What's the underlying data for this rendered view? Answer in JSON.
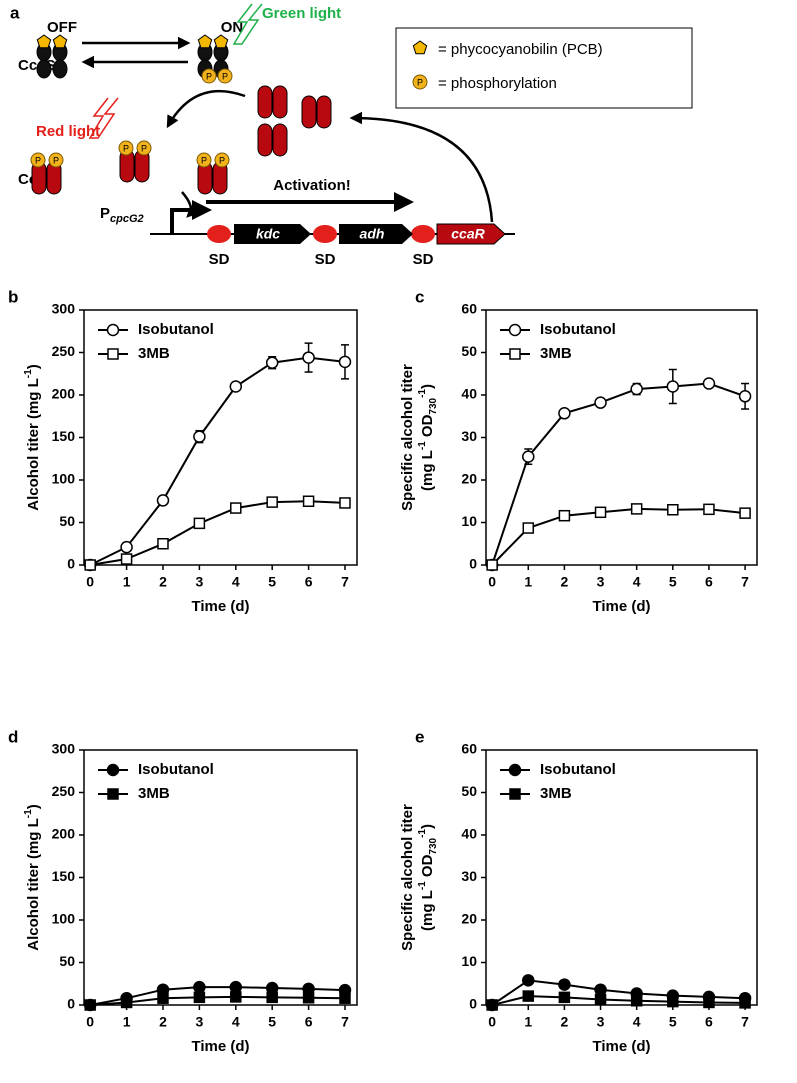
{
  "diagram": {
    "panel": "a",
    "off": "OFF",
    "on": "ON",
    "ccas": "CcaS",
    "green_light": "Green light",
    "red_light": "Red light",
    "ccar": "CcaR",
    "promoter": "P",
    "promoter_sub": "cpcG2",
    "activation": "Activation!",
    "genes": [
      "kdc",
      "adh",
      "ccaR"
    ],
    "sd": [
      "SD",
      "SD",
      "SD"
    ],
    "phospho": "P",
    "legend": [
      "= phycocyanobilin (PCB)",
      "= phosphorylation"
    ]
  },
  "chart_data": [
    {
      "type": "line",
      "label": "b",
      "xlabel": "Time (d)",
      "ylabel": [
        [
          {
            "text": "Alcohol titer (mg L"
          },
          {
            "text": "-1",
            "sup": true
          },
          {
            "text": ")"
          }
        ]
      ],
      "x": [
        0,
        1,
        2,
        3,
        4,
        5,
        6,
        7
      ],
      "xlim": [
        -0.17,
        7.33
      ],
      "xticks": [
        0,
        1,
        2,
        3,
        4,
        5,
        6,
        7
      ],
      "ylim": [
        0,
        300
      ],
      "yticks": [
        0,
        50,
        100,
        150,
        200,
        250,
        300
      ],
      "legend": "upper left",
      "series": [
        {
          "name": "Isobutanol",
          "color": "#000000",
          "marker": "circle",
          "filled": false,
          "values": [
            0,
            21,
            76,
            151,
            210,
            238,
            244,
            239
          ],
          "errors": [
            0,
            2,
            3,
            7,
            2,
            7,
            17,
            20
          ]
        },
        {
          "name": "3MB",
          "color": "#000000",
          "marker": "square",
          "filled": false,
          "values": [
            0,
            7,
            25,
            49,
            67,
            74,
            75,
            73
          ],
          "errors": [
            0,
            1,
            1,
            2,
            2,
            2,
            2,
            2
          ]
        }
      ]
    },
    {
      "type": "line",
      "label": "c",
      "xlabel": "Time (d)",
      "ylabel": [
        [
          {
            "text": "Specific alcohol titer"
          }
        ],
        [
          {
            "text": "(mg L"
          },
          {
            "text": "-1",
            "sup": true
          },
          {
            "text": " OD"
          },
          {
            "text": "730",
            "sub": true
          },
          {
            "text": "-1",
            "sup": true
          },
          {
            "text": ")"
          }
        ]
      ],
      "x": [
        0,
        1,
        2,
        3,
        4,
        5,
        6,
        7
      ],
      "xlim": [
        -0.17,
        7.33
      ],
      "xticks": [
        0,
        1,
        2,
        3,
        4,
        5,
        6,
        7
      ],
      "ylim": [
        0,
        60
      ],
      "yticks": [
        0,
        10,
        20,
        30,
        40,
        50,
        60
      ],
      "legend": "upper left",
      "series": [
        {
          "name": "Isobutanol",
          "color": "#000000",
          "marker": "circle",
          "filled": false,
          "values": [
            0,
            25.5,
            35.7,
            38.2,
            41.4,
            42,
            42.7,
            39.7
          ],
          "errors": [
            0,
            1.8,
            0.5,
            0.7,
            1.3,
            4,
            0.5,
            3
          ]
        },
        {
          "name": "3MB",
          "color": "#000000",
          "marker": "square",
          "filled": false,
          "values": [
            0,
            8.7,
            11.6,
            12.4,
            13.2,
            13,
            13.1,
            12.2
          ],
          "errors": [
            0,
            0.8,
            0.9,
            0.5,
            0.4,
            0.5,
            0.5,
            0.4
          ]
        }
      ]
    },
    {
      "type": "line",
      "label": "d",
      "xlabel": "Time (d)",
      "ylabel": [
        [
          {
            "text": "Alcohol titer (mg L"
          },
          {
            "text": "-1",
            "sup": true
          },
          {
            "text": ")"
          }
        ]
      ],
      "x": [
        0,
        1,
        2,
        3,
        4,
        5,
        6,
        7
      ],
      "xlim": [
        -0.17,
        7.33
      ],
      "xticks": [
        0,
        1,
        2,
        3,
        4,
        5,
        6,
        7
      ],
      "ylim": [
        0,
        300
      ],
      "yticks": [
        0,
        50,
        100,
        150,
        200,
        250,
        300
      ],
      "legend": "upper left",
      "series": [
        {
          "name": "Isobutanol",
          "color": "#000000",
          "marker": "circle",
          "filled": true,
          "values": [
            0,
            8,
            18,
            21,
            21,
            20,
            19,
            17.5
          ]
        },
        {
          "name": "3MB",
          "color": "#000000",
          "marker": "square",
          "filled": true,
          "values": [
            0,
            3,
            8,
            9,
            9.5,
            9,
            8.5,
            8
          ]
        }
      ]
    },
    {
      "type": "line",
      "label": "e",
      "xlabel": "Time (d)",
      "ylabel": [
        [
          {
            "text": "Specific alcohol titer"
          }
        ],
        [
          {
            "text": "(mg L"
          },
          {
            "text": "-1",
            "sup": true
          },
          {
            "text": " OD"
          },
          {
            "text": "730",
            "sub": true
          },
          {
            "text": "-1",
            "sup": true
          },
          {
            "text": ")"
          }
        ]
      ],
      "x": [
        0,
        1,
        2,
        3,
        4,
        5,
        6,
        7
      ],
      "xlim": [
        -0.17,
        7.33
      ],
      "xticks": [
        0,
        1,
        2,
        3,
        4,
        5,
        6,
        7
      ],
      "ylim": [
        0,
        60
      ],
      "yticks": [
        0,
        10,
        20,
        30,
        40,
        50,
        60
      ],
      "legend": "upper left",
      "series": [
        {
          "name": "Isobutanol",
          "color": "#000000",
          "marker": "circle",
          "filled": true,
          "values": [
            0,
            5.8,
            4.8,
            3.6,
            2.7,
            2.2,
            1.9,
            1.6
          ]
        },
        {
          "name": "3MB",
          "color": "#000000",
          "marker": "square",
          "filled": true,
          "values": [
            0,
            2.1,
            1.8,
            1.3,
            1,
            0.8,
            0.6,
            0.5
          ]
        }
      ]
    }
  ]
}
